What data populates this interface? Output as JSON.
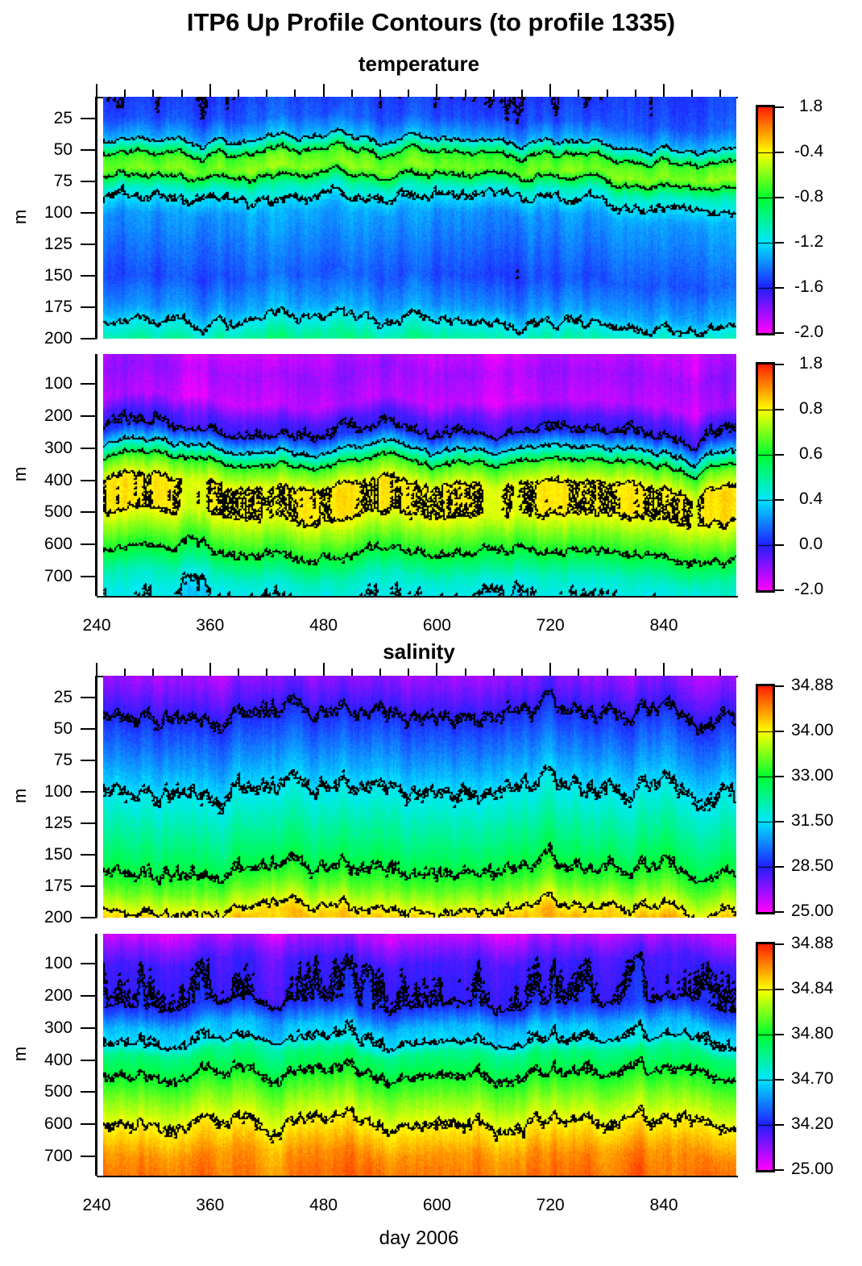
{
  "title": "ITP6 Up Profile Contours (to profile 1335)",
  "chart_data": [
    {
      "type": "heatmap",
      "section": "temperature",
      "section_title": "temperature",
      "ylabel": "m",
      "y_range": [
        8,
        200
      ],
      "y_ticks": [
        "25",
        "50",
        "75",
        "100",
        "125",
        "150",
        "175",
        "200"
      ],
      "x_range": [
        240,
        916
      ],
      "x_ticks": [
        "240",
        "360",
        "480",
        "600",
        "720",
        "840"
      ],
      "colorbar_ticks": [
        "-2.0",
        "-1.6",
        "-1.2",
        "-0.8",
        "-0.4",
        "1.8"
      ],
      "contour_levels": [
        -1.6,
        -1.2,
        -0.8,
        -0.4
      ],
      "profile": {
        "depth": [
          8,
          25,
          40,
          55,
          65,
          80,
          100,
          150,
          175,
          200
        ],
        "value": [
          -1.55,
          -1.5,
          -1.3,
          -0.7,
          -0.6,
          -1.1,
          -1.35,
          -1.5,
          -1.35,
          -1.0
        ]
      }
    },
    {
      "type": "heatmap",
      "section": "temperature",
      "ylabel": "m",
      "y_range": [
        7,
        760
      ],
      "y_ticks": [
        "100",
        "200",
        "300",
        "400",
        "500",
        "600",
        "700"
      ],
      "x_range": [
        240,
        916
      ],
      "x_ticks": [
        "240",
        "360",
        "480",
        "600",
        "720",
        "840"
      ],
      "colorbar_ticks": [
        "-2.0",
        "0.0",
        "0.4",
        "0.6",
        "0.8",
        "1.8"
      ],
      "contour_levels": [
        0.0,
        0.4,
        0.6,
        0.8
      ],
      "profile": {
        "depth": [
          7,
          60,
          150,
          200,
          250,
          300,
          350,
          420,
          500,
          560,
          620,
          700,
          760
        ],
        "value": [
          -1.5,
          -1.2,
          -1.5,
          -0.5,
          0.0,
          0.4,
          0.65,
          0.82,
          0.8,
          0.7,
          0.6,
          0.45,
          0.4
        ]
      }
    },
    {
      "type": "heatmap",
      "section": "salinity",
      "section_title": "salinity",
      "ylabel": "m",
      "y_range": [
        8,
        200
      ],
      "y_ticks": [
        "25",
        "50",
        "75",
        "100",
        "125",
        "150",
        "175",
        "200"
      ],
      "x_range": [
        240,
        916
      ],
      "x_ticks": [
        "240",
        "360",
        "480",
        "600",
        "720",
        "840"
      ],
      "colorbar_ticks": [
        "25.00",
        "28.50",
        "31.50",
        "33.00",
        "34.00",
        "34.88"
      ],
      "contour_levels": [
        28.5,
        31.5,
        33.0,
        34.0
      ],
      "profile": {
        "depth": [
          8,
          25,
          40,
          75,
          100,
          150,
          175,
          200
        ],
        "value": [
          26.5,
          27.5,
          28.5,
          30.2,
          31.5,
          32.6,
          33.3,
          34.2
        ]
      }
    },
    {
      "type": "heatmap",
      "section": "salinity",
      "ylabel": "m",
      "y_range": [
        7,
        760
      ],
      "y_ticks": [
        "100",
        "200",
        "300",
        "400",
        "500",
        "600",
        "700"
      ],
      "x_range": [
        240,
        916
      ],
      "x_ticks": [
        "240",
        "360",
        "480",
        "600",
        "720",
        "840"
      ],
      "colorbar_ticks": [
        "25.00",
        "34.20",
        "34.70",
        "34.80",
        "34.84",
        "34.88"
      ],
      "contour_levels": [
        34.2,
        34.7,
        34.8,
        34.84
      ],
      "profile": {
        "depth": [
          7,
          50,
          100,
          200,
          250,
          300,
          380,
          450,
          520,
          600,
          700,
          760
        ],
        "value": [
          27.0,
          30.0,
          33.0,
          34.1,
          34.3,
          34.6,
          34.76,
          34.8,
          34.82,
          34.84,
          34.86,
          34.865
        ]
      }
    }
  ],
  "xlabel": "day 2006",
  "colormap": [
    "#ff00ff",
    "#2020ff",
    "#00e8ff",
    "#00ff30",
    "#ffff00",
    "#ff2000"
  ]
}
